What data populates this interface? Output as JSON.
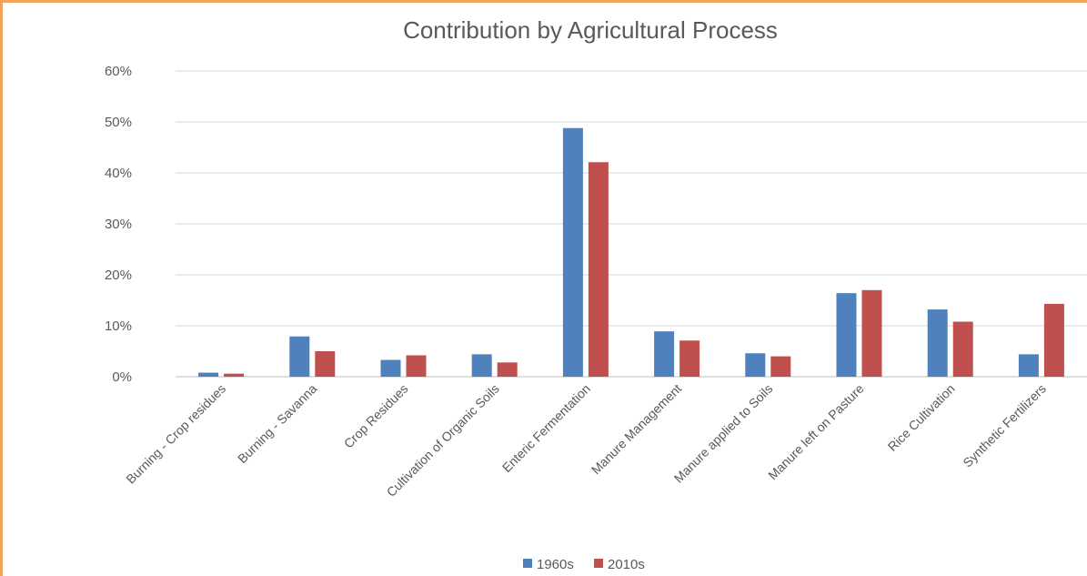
{
  "chart_data": {
    "type": "bar",
    "title": "Contribution by Agricultural Process",
    "xlabel": "",
    "ylabel": "",
    "ylim": [
      0,
      60
    ],
    "yticks": [
      "0%",
      "10%",
      "20%",
      "30%",
      "40%",
      "50%",
      "60%"
    ],
    "grid": true,
    "legend_position": "bottom",
    "categories": [
      "Burning - Crop residues",
      "Burning - Savanna",
      "Crop Residues",
      "Cultivation of Organic Soils",
      "Enteric Fermentation",
      "Manure Management",
      "Manure applied to Soils",
      "Manure left on Pasture",
      "Rice Cultivation",
      "Synthetic Fertilizers"
    ],
    "series": [
      {
        "name": "1960s",
        "color": "#4f81bd",
        "values": [
          0.8,
          7.9,
          3.3,
          4.4,
          48.8,
          8.9,
          4.6,
          16.4,
          13.2,
          4.4
        ]
      },
      {
        "name": "2010s",
        "color": "#c0504d",
        "values": [
          0.6,
          5.0,
          4.2,
          2.8,
          42.1,
          7.1,
          4.0,
          17.0,
          10.8,
          14.3
        ]
      }
    ]
  }
}
